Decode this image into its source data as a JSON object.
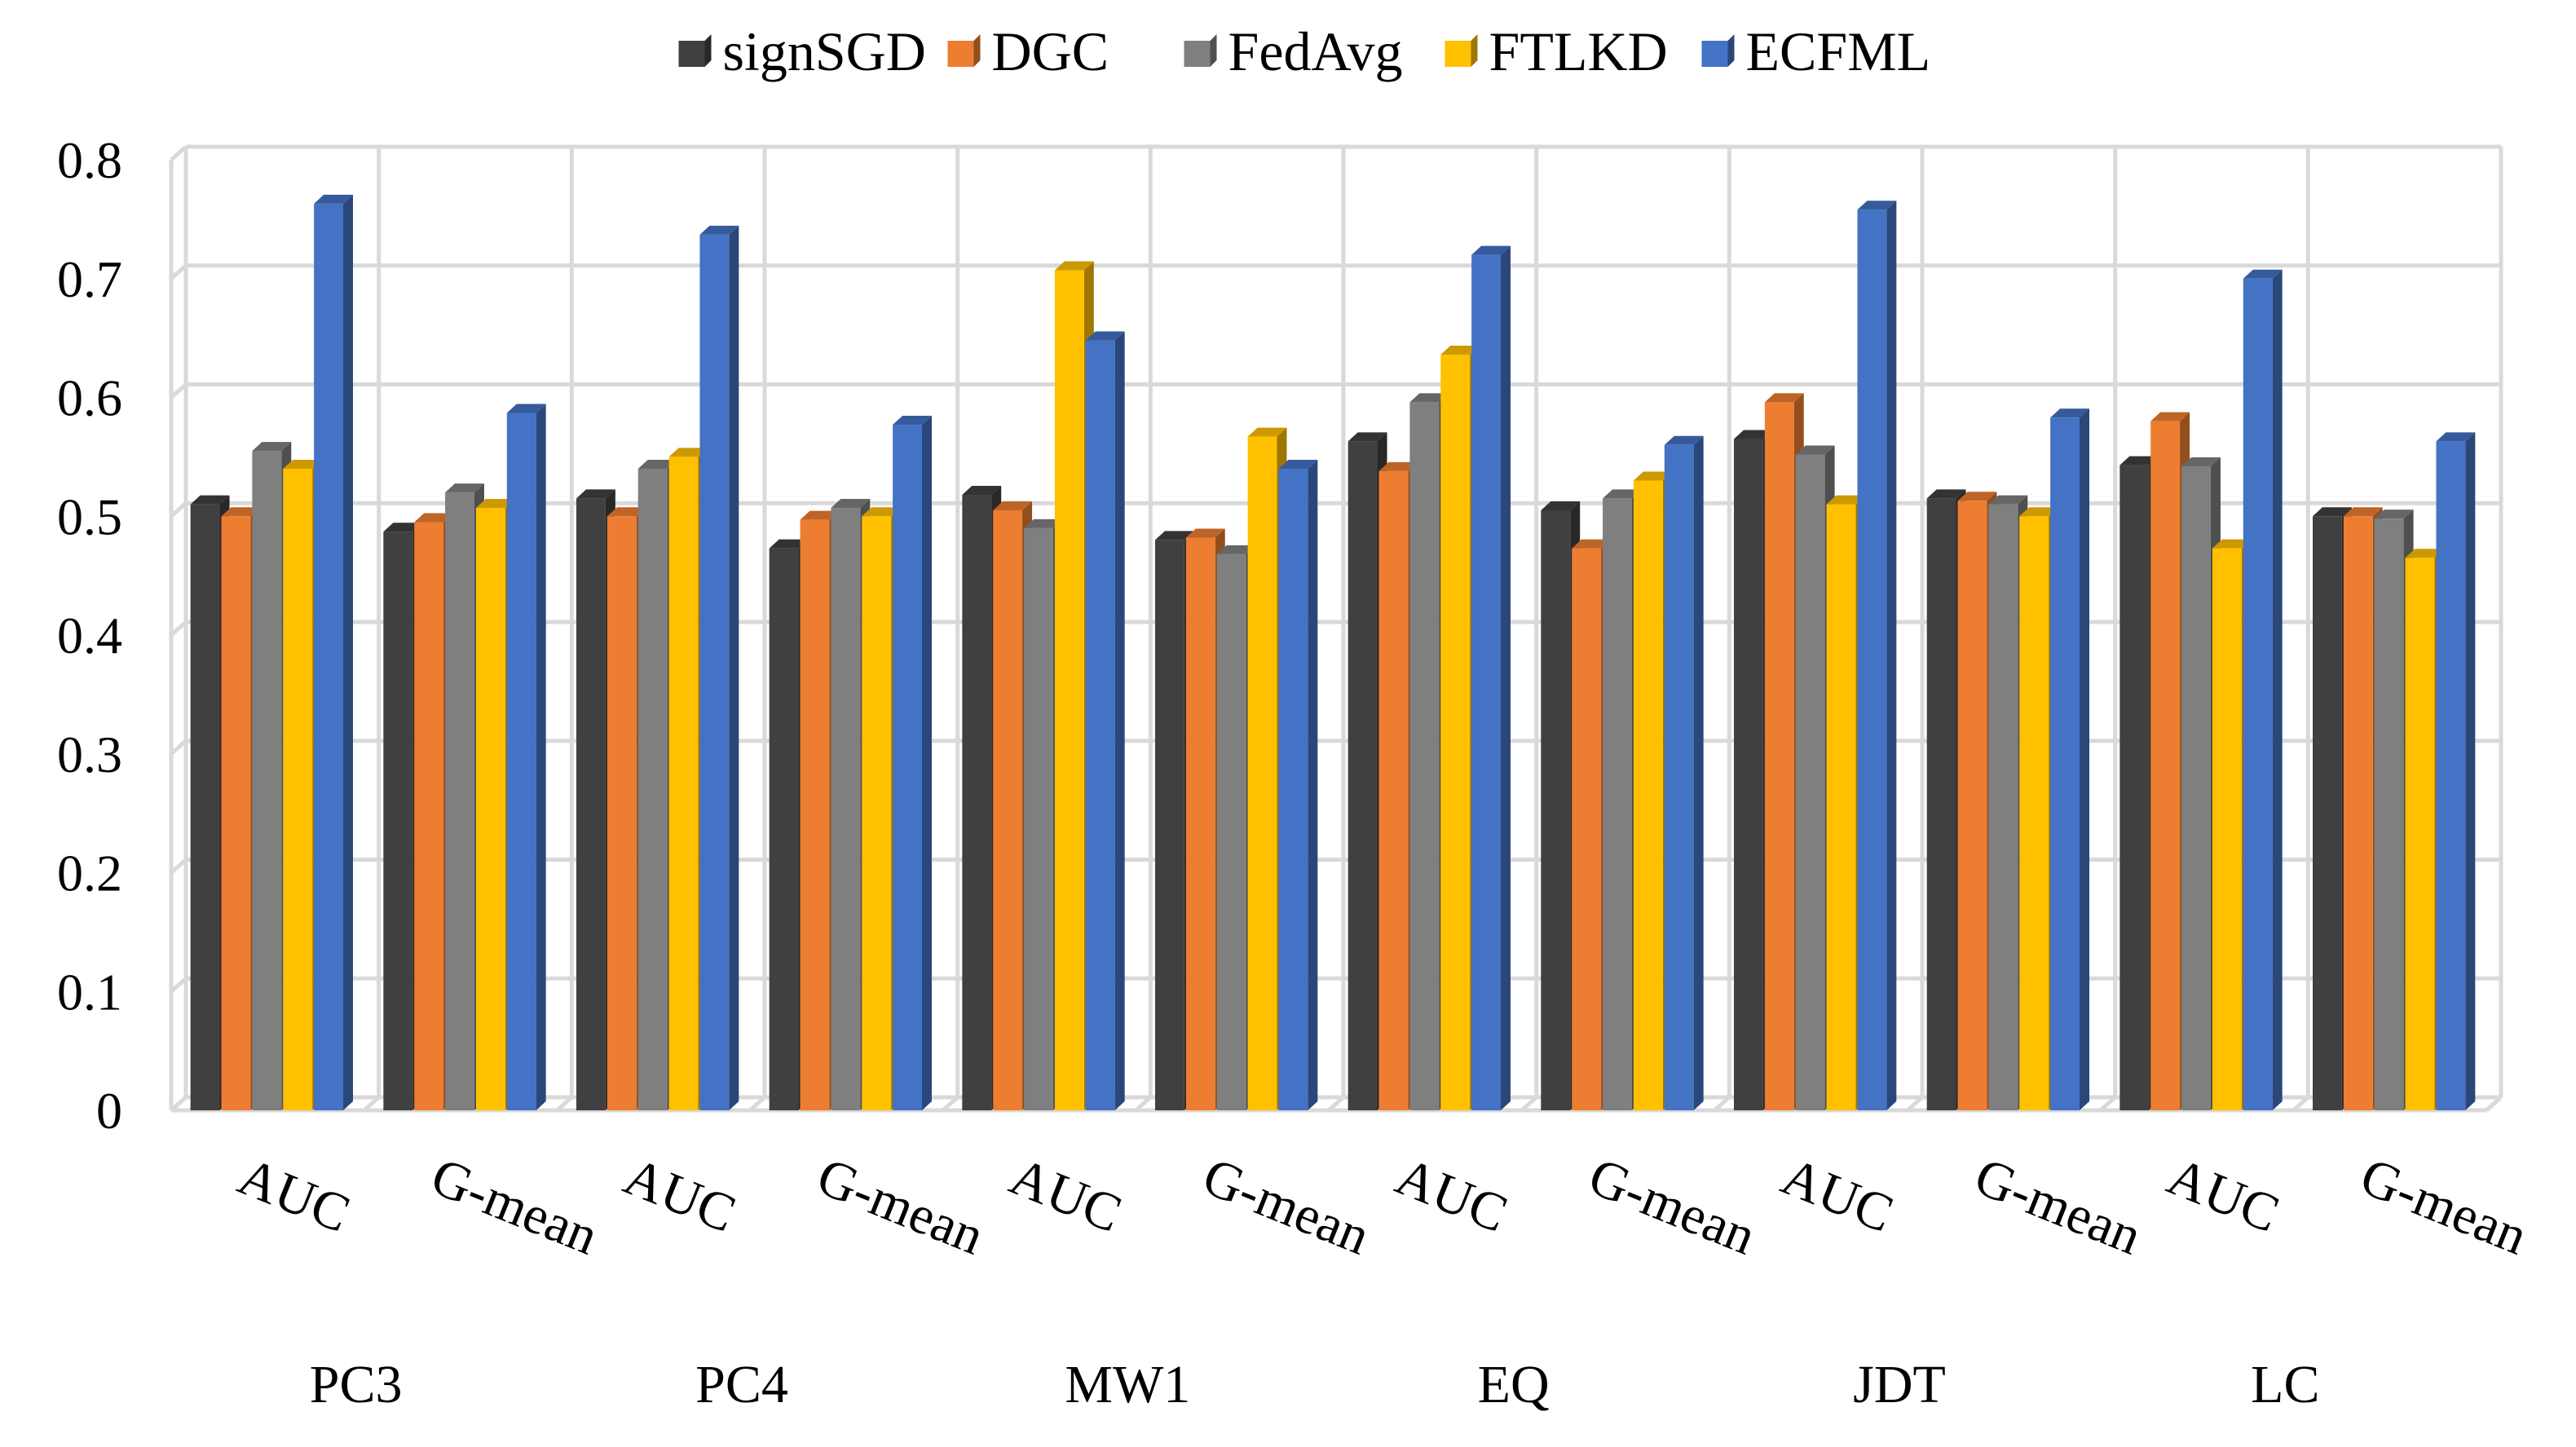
{
  "chart_data": {
    "type": "bar",
    "title": "",
    "xlabel": "",
    "ylabel": "",
    "ylim": [
      0,
      0.8
    ],
    "yticks": [
      "0",
      "0.1",
      "0.2",
      "0.3",
      "0.4",
      "0.5",
      "0.6",
      "0.7",
      "0.8"
    ],
    "grid": true,
    "legend_position": "top",
    "categories": [
      "AUC",
      "G-mean",
      "AUC",
      "G-mean",
      "AUC",
      "G-mean",
      "AUC",
      "G-mean",
      "AUC",
      "G-mean",
      "AUC",
      "G-mean"
    ],
    "groups": [
      "PC3",
      "PC4",
      "MW1",
      "EQ",
      "JDT",
      "LC"
    ],
    "series": [
      {
        "name": "signSGD",
        "color": "#404040",
        "values": [
          0.51,
          0.487,
          0.515,
          0.473,
          0.518,
          0.48,
          0.563,
          0.505,
          0.565,
          0.515,
          0.543,
          0.5
        ]
      },
      {
        "name": "DGC",
        "color": "#ED7D31",
        "values": [
          0.5,
          0.495,
          0.5,
          0.497,
          0.505,
          0.482,
          0.538,
          0.473,
          0.596,
          0.513,
          0.58,
          0.5
        ]
      },
      {
        "name": "FedAvg",
        "color": "#7F7F7F",
        "values": [
          0.555,
          0.52,
          0.54,
          0.507,
          0.49,
          0.468,
          0.596,
          0.515,
          0.552,
          0.51,
          0.542,
          0.498
        ]
      },
      {
        "name": "FTLKD",
        "color": "#FFC000",
        "values": [
          0.54,
          0.507,
          0.55,
          0.5,
          0.707,
          0.567,
          0.636,
          0.53,
          0.51,
          0.5,
          0.473,
          0.465
        ]
      },
      {
        "name": "ECFML",
        "color": "#4472C4",
        "values": [
          0.763,
          0.587,
          0.737,
          0.577,
          0.648,
          0.54,
          0.72,
          0.56,
          0.758,
          0.583,
          0.7,
          0.563
        ]
      }
    ]
  }
}
